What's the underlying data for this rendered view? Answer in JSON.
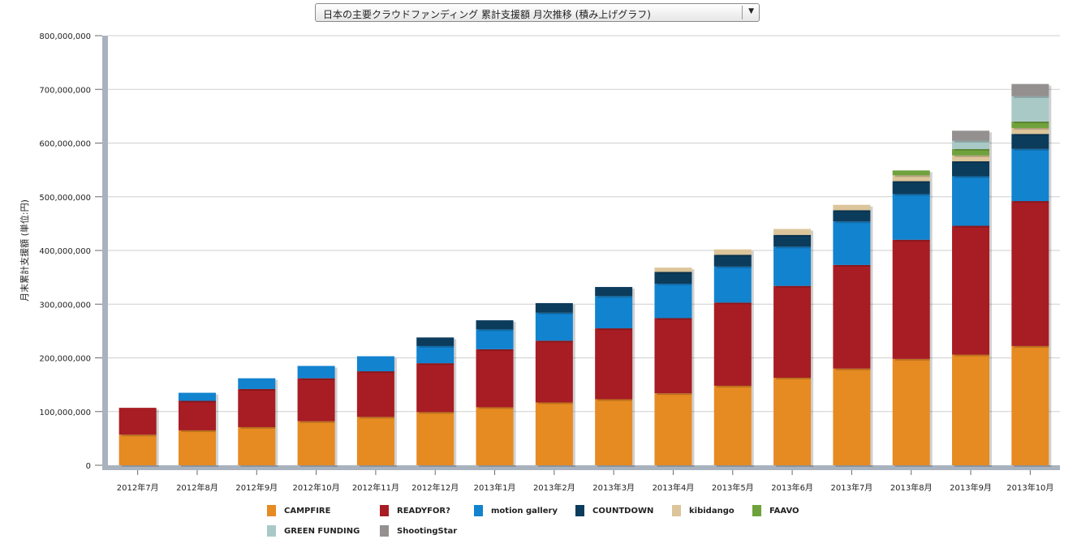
{
  "chart_title": "日本の主要クラウドファンディング 累計支援額 月次推移 (積み上げグラフ)",
  "dropdown_arrow": "▼",
  "chart_data": {
    "type": "bar",
    "stacked": true,
    "title": "日本の主要クラウドファンディング 累計支援額 月次推移 (積み上げグラフ)",
    "xlabel": "",
    "ylabel": "月末累計支援額 (単位:円)",
    "ylim": [
      0,
      800000000
    ],
    "yticks": [
      0,
      100000000,
      200000000,
      300000000,
      400000000,
      500000000,
      600000000,
      700000000,
      800000000
    ],
    "ytick_labels": [
      "0",
      "100,000,000",
      "200,000,000",
      "300,000,000",
      "400,000,000",
      "500,000,000",
      "600,000,000",
      "700,000,000",
      "800,000,000"
    ],
    "grid": true,
    "legend_position": "bottom",
    "categories": [
      "2012年7月",
      "2012年8月",
      "2012年9月",
      "2012年10月",
      "2012年11月",
      "2012年12月",
      "2013年1月",
      "2013年2月",
      "2013年3月",
      "2013年4月",
      "2013年5月",
      "2013年6月",
      "2013年7月",
      "2013年8月",
      "2013年9月",
      "2013年10月"
    ],
    "series": [
      {
        "name": "CAMPFIRE",
        "color": "#e68a22",
        "values": [
          57000000,
          65000000,
          71000000,
          82000000,
          90000000,
          99000000,
          108000000,
          117000000,
          123000000,
          134000000,
          148000000,
          163000000,
          180000000,
          198000000,
          206000000,
          222000000
        ]
      },
      {
        "name": "READYFOR?",
        "color": "#a71d23",
        "values": [
          50000000,
          55000000,
          71000000,
          80000000,
          85000000,
          91000000,
          108000000,
          115000000,
          132000000,
          140000000,
          155000000,
          171000000,
          193000000,
          222000000,
          240000000,
          270000000
        ]
      },
      {
        "name": "motion gallery",
        "color": "#1283cf",
        "values": [
          0,
          15000000,
          20000000,
          23000000,
          28000000,
          32000000,
          37000000,
          52000000,
          60000000,
          64000000,
          67000000,
          73000000,
          81000000,
          85000000,
          92000000,
          97000000
        ]
      },
      {
        "name": "COUNTDOWN",
        "color": "#0c3c5c",
        "values": [
          0,
          0,
          0,
          0,
          0,
          16000000,
          17000000,
          18000000,
          17000000,
          22000000,
          22000000,
          22000000,
          21000000,
          24000000,
          28000000,
          28000000
        ]
      },
      {
        "name": "kibidango",
        "color": "#dcc59a",
        "values": [
          0,
          0,
          0,
          0,
          0,
          0,
          0,
          0,
          0,
          8000000,
          10000000,
          11000000,
          10000000,
          11000000,
          11000000,
          11000000
        ]
      },
      {
        "name": "FAAVO",
        "color": "#6fa23c",
        "values": [
          0,
          0,
          0,
          0,
          0,
          0,
          0,
          0,
          0,
          0,
          0,
          0,
          0,
          9000000,
          12000000,
          12000000
        ]
      },
      {
        "name": "GREEN FUNDING",
        "color": "#a9c9c7",
        "values": [
          0,
          0,
          0,
          0,
          0,
          0,
          0,
          0,
          0,
          0,
          0,
          0,
          0,
          0,
          15000000,
          47000000
        ]
      },
      {
        "name": "ShootingStar",
        "color": "#959090",
        "values": [
          0,
          0,
          0,
          0,
          0,
          0,
          0,
          0,
          0,
          0,
          0,
          0,
          0,
          0,
          19000000,
          23000000
        ]
      }
    ]
  }
}
